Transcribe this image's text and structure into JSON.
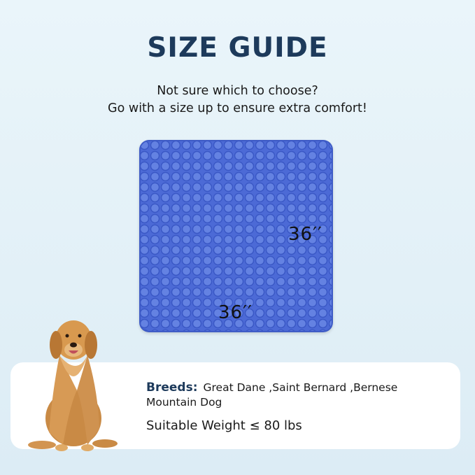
{
  "title": "SIZE GUIDE",
  "subtitle": {
    "line1": "Not sure which to choose?",
    "line2": "Go with a size up to ensure extra comfort!"
  },
  "mat": {
    "color": "#4c6ad6",
    "height_label": "36′′",
    "width_label": "36′′"
  },
  "info": {
    "breeds_label": "Breeds:",
    "breeds_value": "Great Dane ,Saint Bernard ,Bernese Mountain Dog",
    "weight": "Suitable Weight ≤ 80 lbs"
  },
  "colors": {
    "title": "#1d3a5b",
    "background": "#e4f1f8"
  }
}
